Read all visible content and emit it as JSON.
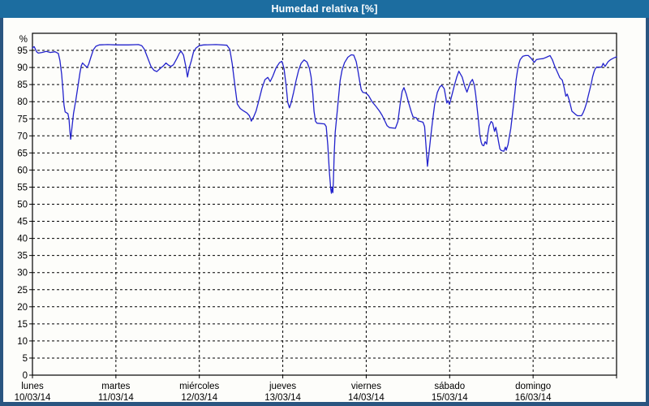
{
  "window": {
    "title": "Humedad relativa [%]",
    "titlebar_color": "#1C6DA0",
    "border_color": "#2A5580",
    "background_color": "#fdfdfa"
  },
  "chart_data": {
    "type": "line",
    "title": "Humedad relativa [%]",
    "ylabel": "%",
    "ylim": [
      0,
      100
    ],
    "ytick_step": 5,
    "ytick_labels": [
      "0",
      "5",
      "10",
      "15",
      "20",
      "25",
      "30",
      "35",
      "40",
      "45",
      "50",
      "55",
      "60",
      "65",
      "70",
      "75",
      "80",
      "85",
      "90",
      "95"
    ],
    "y_unit_label": "%",
    "grid": "dashed",
    "legend": "none",
    "axis_color": "#000000",
    "grid_color": "#000000",
    "x_days": [
      {
        "name": "lunes",
        "date": "10/03/14"
      },
      {
        "name": "martes",
        "date": "11/03/14"
      },
      {
        "name": "miércoles",
        "date": "12/03/14"
      },
      {
        "name": "jueves",
        "date": "13/03/14"
      },
      {
        "name": "viernes",
        "date": "14/03/14"
      },
      {
        "name": "sábado",
        "date": "15/03/14"
      },
      {
        "name": "domingo",
        "date": "16/03/14"
      }
    ],
    "series": [
      {
        "name": "Humedad relativa",
        "color": "#2222CC",
        "x_unit": "days_from_monday",
        "points": [
          [
            0.0,
            95.7
          ],
          [
            0.02,
            96.1
          ],
          [
            0.05,
            94.6
          ],
          [
            0.07,
            94.2
          ],
          [
            0.115,
            94.4
          ],
          [
            0.165,
            94.7
          ],
          [
            0.215,
            94.4
          ],
          [
            0.27,
            94.6
          ],
          [
            0.31,
            94.1
          ],
          [
            0.33,
            92.0
          ],
          [
            0.35,
            88.0
          ],
          [
            0.365,
            83.5
          ],
          [
            0.378,
            79.0
          ],
          [
            0.392,
            77.0
          ],
          [
            0.425,
            76.5
          ],
          [
            0.438,
            74.8
          ],
          [
            0.448,
            71.5
          ],
          [
            0.458,
            69.0
          ],
          [
            0.472,
            72.0
          ],
          [
            0.492,
            76.5
          ],
          [
            0.52,
            80.5
          ],
          [
            0.548,
            85.0
          ],
          [
            0.57,
            88.5
          ],
          [
            0.585,
            90.5
          ],
          [
            0.6,
            91.3
          ],
          [
            0.625,
            90.7
          ],
          [
            0.655,
            90.0
          ],
          [
            0.675,
            91.0
          ],
          [
            0.7,
            93.0
          ],
          [
            0.73,
            95.2
          ],
          [
            0.76,
            96.2
          ],
          [
            0.8,
            96.6
          ],
          [
            0.9,
            96.7
          ],
          [
            1.0,
            96.6
          ],
          [
            1.15,
            96.6
          ],
          [
            1.27,
            96.7
          ],
          [
            1.31,
            96.4
          ],
          [
            1.34,
            95.4
          ],
          [
            1.38,
            92.9
          ],
          [
            1.42,
            90.3
          ],
          [
            1.455,
            89.2
          ],
          [
            1.49,
            88.8
          ],
          [
            1.53,
            89.7
          ],
          [
            1.57,
            90.5
          ],
          [
            1.6,
            91.3
          ],
          [
            1.63,
            90.7
          ],
          [
            1.66,
            90.3
          ],
          [
            1.69,
            90.8
          ],
          [
            1.73,
            92.6
          ],
          [
            1.76,
            94.1
          ],
          [
            1.78,
            94.8
          ],
          [
            1.81,
            93.6
          ],
          [
            1.84,
            90.0
          ],
          [
            1.858,
            87.2
          ],
          [
            1.88,
            90.0
          ],
          [
            1.905,
            92.0
          ],
          [
            1.93,
            94.5
          ],
          [
            1.96,
            95.7
          ],
          [
            2.0,
            96.4
          ],
          [
            2.05,
            96.6
          ],
          [
            2.2,
            96.7
          ],
          [
            2.33,
            96.5
          ],
          [
            2.365,
            95.3
          ],
          [
            2.395,
            91.0
          ],
          [
            2.425,
            85.0
          ],
          [
            2.455,
            79.3
          ],
          [
            2.49,
            78.0
          ],
          [
            2.53,
            77.3
          ],
          [
            2.57,
            76.7
          ],
          [
            2.6,
            75.9
          ],
          [
            2.623,
            74.3
          ],
          [
            2.65,
            75.5
          ],
          [
            2.68,
            77.3
          ],
          [
            2.715,
            80.5
          ],
          [
            2.75,
            83.9
          ],
          [
            2.785,
            86.4
          ],
          [
            2.82,
            87.1
          ],
          [
            2.85,
            85.9
          ],
          [
            2.88,
            87.4
          ],
          [
            2.92,
            89.9
          ],
          [
            2.96,
            91.4
          ],
          [
            2.99,
            91.8
          ],
          [
            3.015,
            89.7
          ],
          [
            3.04,
            84.7
          ],
          [
            3.06,
            79.8
          ],
          [
            3.08,
            78.2
          ],
          [
            3.1,
            79.7
          ],
          [
            3.13,
            82.7
          ],
          [
            3.16,
            86.2
          ],
          [
            3.19,
            89.2
          ],
          [
            3.22,
            91.2
          ],
          [
            3.255,
            92.2
          ],
          [
            3.29,
            91.6
          ],
          [
            3.32,
            89.7
          ],
          [
            3.34,
            87.2
          ],
          [
            3.36,
            82.2
          ],
          [
            3.375,
            77.2
          ],
          [
            3.392,
            74.3
          ],
          [
            3.41,
            73.7
          ],
          [
            3.5,
            73.5
          ],
          [
            3.52,
            72.7
          ],
          [
            3.54,
            67.2
          ],
          [
            3.558,
            59.5
          ],
          [
            3.575,
            54.5
          ],
          [
            3.583,
            53.2
          ],
          [
            3.592,
            55.0
          ],
          [
            3.6,
            53.4
          ],
          [
            3.607,
            57.0
          ],
          [
            3.617,
            65.0
          ],
          [
            3.628,
            71.0
          ],
          [
            3.645,
            75.2
          ],
          [
            3.668,
            81.2
          ],
          [
            3.688,
            86.2
          ],
          [
            3.71,
            89.2
          ],
          [
            3.74,
            91.4
          ],
          [
            3.78,
            93.0
          ],
          [
            3.82,
            93.7
          ],
          [
            3.85,
            93.6
          ],
          [
            3.88,
            91.7
          ],
          [
            3.9,
            89.2
          ],
          [
            3.92,
            86.2
          ],
          [
            3.94,
            83.5
          ],
          [
            3.96,
            82.7
          ],
          [
            4.0,
            82.5
          ],
          [
            4.03,
            81.7
          ],
          [
            4.07,
            80.0
          ],
          [
            4.12,
            78.5
          ],
          [
            4.16,
            77.2
          ],
          [
            4.19,
            76.0
          ],
          [
            4.22,
            74.5
          ],
          [
            4.25,
            73.0
          ],
          [
            4.28,
            72.4
          ],
          [
            4.35,
            72.2
          ],
          [
            4.38,
            74.2
          ],
          [
            4.405,
            79.0
          ],
          [
            4.43,
            83.0
          ],
          [
            4.452,
            84.1
          ],
          [
            4.48,
            82.2
          ],
          [
            4.51,
            79.5
          ],
          [
            4.54,
            77.0
          ],
          [
            4.562,
            75.5
          ],
          [
            4.6,
            75.3
          ],
          [
            4.622,
            74.4
          ],
          [
            4.68,
            74.0
          ],
          [
            4.7,
            72.7
          ],
          [
            4.718,
            66.5
          ],
          [
            4.734,
            61.1
          ],
          [
            4.752,
            65.0
          ],
          [
            4.77,
            69.0
          ],
          [
            4.792,
            73.8
          ],
          [
            4.82,
            79.2
          ],
          [
            4.852,
            82.7
          ],
          [
            4.882,
            84.3
          ],
          [
            4.905,
            84.8
          ],
          [
            4.935,
            83.8
          ],
          [
            4.966,
            79.6
          ],
          [
            4.98,
            80.3
          ],
          [
            4.998,
            79.2
          ],
          [
            5.02,
            81.2
          ],
          [
            5.053,
            84.4
          ],
          [
            5.085,
            87.2
          ],
          [
            5.11,
            88.9
          ],
          [
            5.15,
            87.2
          ],
          [
            5.182,
            84.4
          ],
          [
            5.207,
            82.8
          ],
          [
            5.247,
            85.6
          ],
          [
            5.273,
            86.5
          ],
          [
            5.296,
            84.8
          ],
          [
            5.312,
            82.0
          ],
          [
            5.328,
            78.4
          ],
          [
            5.345,
            74.5
          ],
          [
            5.36,
            70.5
          ],
          [
            5.377,
            68.2
          ],
          [
            5.391,
            67.3
          ],
          [
            5.408,
            67.1
          ],
          [
            5.425,
            68.3
          ],
          [
            5.443,
            67.6
          ],
          [
            5.456,
            70.5
          ],
          [
            5.473,
            72.9
          ],
          [
            5.497,
            74.2
          ],
          [
            5.514,
            73.8
          ],
          [
            5.538,
            71.3
          ],
          [
            5.553,
            72.5
          ],
          [
            5.57,
            70.5
          ],
          [
            5.586,
            68.2
          ],
          [
            5.602,
            66.2
          ],
          [
            5.618,
            65.7
          ],
          [
            5.65,
            65.5
          ],
          [
            5.667,
            66.7
          ],
          [
            5.678,
            65.8
          ],
          [
            5.699,
            67.4
          ],
          [
            5.716,
            69.8
          ],
          [
            5.732,
            72.1
          ],
          [
            5.748,
            75.3
          ],
          [
            5.764,
            78.8
          ],
          [
            5.781,
            82.4
          ],
          [
            5.796,
            86.4
          ],
          [
            5.813,
            89.1
          ],
          [
            5.829,
            91.1
          ],
          [
            5.845,
            92.3
          ],
          [
            5.878,
            93.3
          ],
          [
            5.91,
            93.5
          ],
          [
            5.942,
            93.5
          ],
          [
            5.975,
            92.7
          ],
          [
            6.014,
            91.5
          ],
          [
            6.04,
            92.3
          ],
          [
            6.08,
            92.5
          ],
          [
            6.12,
            92.6
          ],
          [
            6.16,
            93.0
          ],
          [
            6.203,
            93.5
          ],
          [
            6.23,
            92.3
          ],
          [
            6.26,
            90.3
          ],
          [
            6.29,
            88.7
          ],
          [
            6.32,
            87.0
          ],
          [
            6.35,
            86.3
          ],
          [
            6.37,
            84.3
          ],
          [
            6.392,
            81.6
          ],
          [
            6.41,
            82.2
          ],
          [
            6.433,
            80.4
          ],
          [
            6.465,
            77.2
          ],
          [
            6.49,
            76.7
          ],
          [
            6.513,
            76.2
          ],
          [
            6.53,
            75.9
          ],
          [
            6.58,
            75.9
          ],
          [
            6.6,
            76.8
          ],
          [
            6.62,
            78.0
          ],
          [
            6.64,
            79.6
          ],
          [
            6.66,
            81.6
          ],
          [
            6.68,
            83.6
          ],
          [
            6.7,
            85.6
          ],
          [
            6.712,
            87.2
          ],
          [
            6.73,
            88.7
          ],
          [
            6.742,
            89.5
          ],
          [
            6.76,
            90.1
          ],
          [
            6.82,
            90.1
          ],
          [
            6.84,
            91.2
          ],
          [
            6.862,
            90.3
          ],
          [
            6.9,
            91.7
          ],
          [
            6.93,
            92.3
          ],
          [
            6.968,
            92.8
          ],
          [
            7.0,
            93.1
          ]
        ]
      }
    ]
  }
}
